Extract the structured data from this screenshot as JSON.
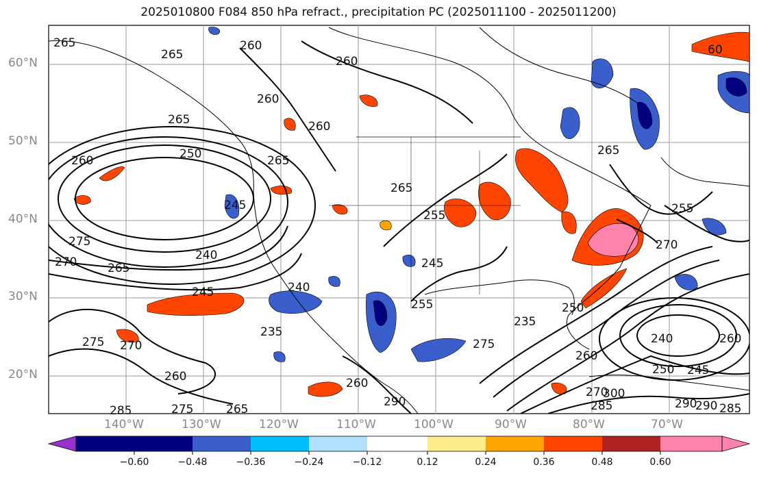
{
  "title": "2025010800 F084 850 hPa refract., precipitation PC (2025011100 - 2025011200)",
  "lat_labels": [
    "60°N",
    "50°N",
    "40°N",
    "30°N",
    "20°N"
  ],
  "lon_labels": [
    "140°W",
    "130°W",
    "120°W",
    "110°W",
    "100°W",
    "90°W",
    "80°W",
    "70°W"
  ],
  "contour_labels": [
    "265",
    "260",
    "265",
    "260",
    "260",
    "260",
    "265",
    "250",
    "260",
    "265",
    "245",
    "265",
    "255",
    "265",
    "255",
    "260",
    "275",
    "270",
    "265",
    "240",
    "245",
    "240",
    "235",
    "275",
    "270",
    "260",
    "285",
    "275",
    "265",
    "260",
    "290",
    "255",
    "245",
    "235",
    "250",
    "270",
    "240",
    "250",
    "245",
    "260",
    "275",
    "270",
    "300",
    "290",
    "290",
    "285",
    "285",
    "60"
  ],
  "colorbar": {
    "colors": [
      "#9932cc",
      "#000080",
      "#3a5fcd",
      "#00bfff",
      "#b0e2ff",
      "#ffffff",
      "#ffec8b",
      "#ffa500",
      "#ff4500",
      "#b22222",
      "#ff82ab"
    ],
    "ticks": [
      "−0.60",
      "−0.48",
      "−0.36",
      "−0.24",
      "−0.12",
      "0.12",
      "0.24",
      "0.36",
      "0.48",
      "0.60"
    ]
  }
}
